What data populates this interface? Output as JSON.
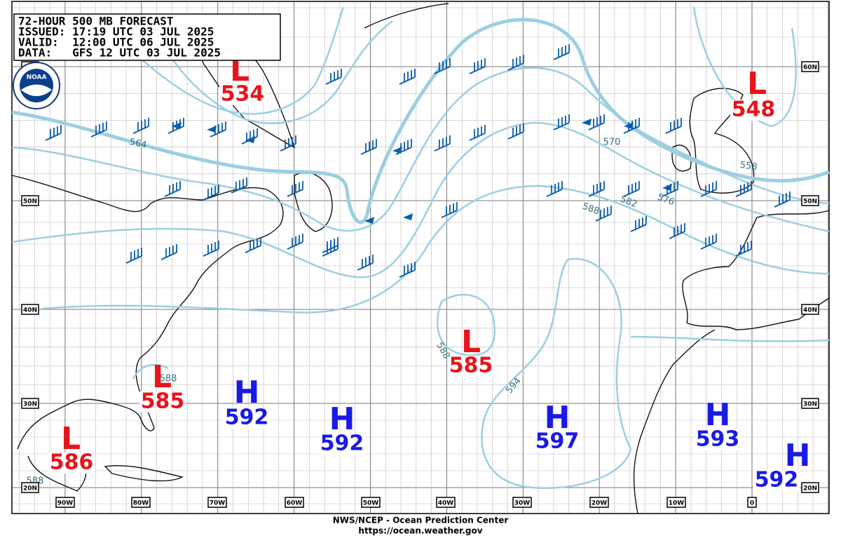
{
  "header": {
    "lines": [
      "72-HOUR 500 MB FORECAST",
      "ISSUED: 17:19 UTC 03 JUL 2025",
      "VALID:  12:00 UTC 06 JUL 2025",
      "DATA:   GFS 12 UTC 03 JUL 2025"
    ]
  },
  "logo": "NOAA",
  "centers": [
    {
      "symbol": "L",
      "value": "534"
    },
    {
      "symbol": "L",
      "value": "548"
    },
    {
      "symbol": "L",
      "value": "585"
    },
    {
      "symbol": "L",
      "value": "585"
    },
    {
      "symbol": "L",
      "value": "586"
    },
    {
      "symbol": "H",
      "value": "592"
    },
    {
      "symbol": "H",
      "value": "592"
    },
    {
      "symbol": "H",
      "value": "597"
    },
    {
      "symbol": "H",
      "value": "593"
    },
    {
      "symbol": "H",
      "value": "592"
    }
  ],
  "contour_labels": [
    "564",
    "570",
    "558",
    "582",
    "576",
    "588",
    "594",
    "588",
    "588",
    "588"
  ],
  "latitude_labels": [
    "60N",
    "50N",
    "40N",
    "30N",
    "20N"
  ],
  "longitude_labels": [
    "90W",
    "80W",
    "70W",
    "60W",
    "50W",
    "40W",
    "30W",
    "20W",
    "10W",
    "0"
  ],
  "footer": {
    "agency": "NWS/NCEP - Ocean Prediction Center",
    "url": "https://ocean.weather.gov"
  }
}
